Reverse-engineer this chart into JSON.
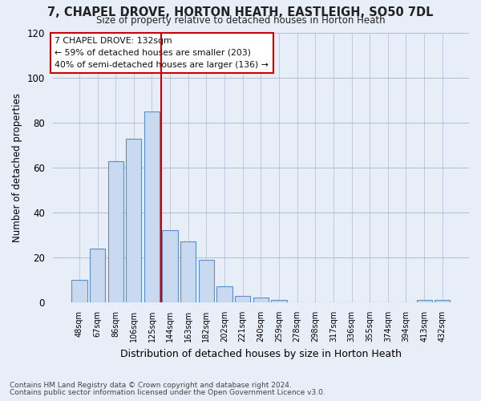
{
  "title": "7, CHAPEL DROVE, HORTON HEATH, EASTLEIGH, SO50 7DL",
  "subtitle": "Size of property relative to detached houses in Horton Heath",
  "xlabel": "Distribution of detached houses by size in Horton Heath",
  "ylabel": "Number of detached properties",
  "bar_labels": [
    "48sqm",
    "67sqm",
    "86sqm",
    "106sqm",
    "125sqm",
    "144sqm",
    "163sqm",
    "182sqm",
    "202sqm",
    "221sqm",
    "240sqm",
    "259sqm",
    "278sqm",
    "298sqm",
    "317sqm",
    "336sqm",
    "355sqm",
    "374sqm",
    "394sqm",
    "413sqm",
    "432sqm"
  ],
  "bar_heights": [
    10,
    24,
    63,
    73,
    85,
    32,
    27,
    19,
    7,
    3,
    2,
    1,
    0,
    0,
    0,
    0,
    0,
    0,
    0,
    1,
    1
  ],
  "bar_color": "#c9d9ef",
  "bar_edge_color": "#5b8fc9",
  "vline_x": 4.5,
  "vline_color": "#cc0000",
  "ylim": [
    0,
    120
  ],
  "yticks": [
    0,
    20,
    40,
    60,
    80,
    100,
    120
  ],
  "annotation_title": "7 CHAPEL DROVE: 132sqm",
  "annotation_line1": "← 59% of detached houses are smaller (203)",
  "annotation_line2": "40% of semi-detached houses are larger (136) →",
  "footer_line1": "Contains HM Land Registry data © Crown copyright and database right 2024.",
  "footer_line2": "Contains public sector information licensed under the Open Government Licence v3.0.",
  "background_color": "#e8eef8",
  "plot_bg_color": "#e8eef8",
  "grid_color": "#b0bcd4"
}
